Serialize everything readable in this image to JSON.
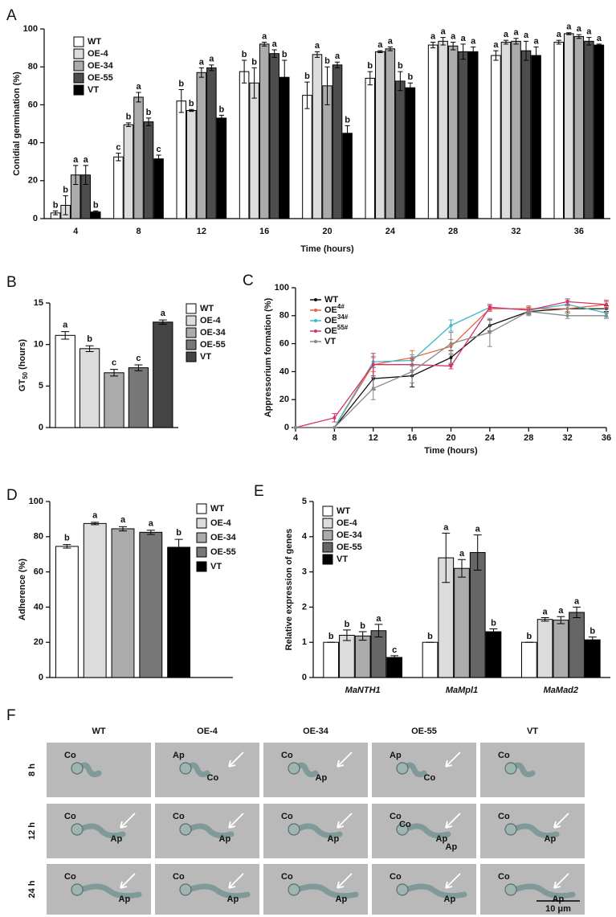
{
  "chart_data": [
    {
      "type": "bar",
      "panel_label": "A",
      "ylabel": "Conidial germination (%)",
      "xlabel": "Time (hours)",
      "categories": [
        "4",
        "8",
        "12",
        "16",
        "20",
        "24",
        "28",
        "32",
        "36"
      ],
      "ylim": [
        0,
        100
      ],
      "yticks": [
        0,
        20,
        40,
        60,
        80,
        100
      ],
      "series": [
        {
          "name": "WT",
          "color": "#ffffff",
          "values": [
            3,
            32.5,
            62,
            77.5,
            65,
            74,
            91.5,
            86,
            93
          ],
          "errors": [
            1,
            2,
            6,
            6,
            7,
            3.5,
            1.5,
            2.5,
            1
          ],
          "annotations": [
            "b",
            "c",
            "b",
            "b",
            "b",
            "b",
            "a",
            "a",
            "a"
          ]
        },
        {
          "name": "OE-4",
          "color": "#dcdcdc",
          "values": [
            7,
            49.5,
            57,
            71.5,
            86.5,
            88,
            93.5,
            93,
            97.5
          ],
          "errors": [
            5,
            1,
            0.5,
            8,
            1.5,
            0.5,
            2,
            1,
            0.5
          ],
          "annotations": [
            "b",
            "b",
            "b",
            "b",
            "a",
            "a",
            "a",
            "a",
            "a"
          ]
        },
        {
          "name": "OE-34",
          "color": "#ababab",
          "values": [
            23,
            64,
            77,
            92,
            70,
            89.5,
            91,
            93.5,
            96
          ],
          "errors": [
            5,
            2.5,
            2.5,
            1,
            10,
            1,
            2,
            1.5,
            1
          ],
          "annotations": [
            "a",
            "a",
            "a",
            "a",
            "b",
            "a",
            "a",
            "a",
            "a"
          ]
        },
        {
          "name": "OE-55",
          "color": "#4d4d4d",
          "values": [
            23,
            51,
            79.5,
            87,
            81,
            72.5,
            88,
            88.5,
            93.5
          ],
          "errors": [
            5,
            2,
            1.5,
            2,
            1.5,
            5,
            4,
            5,
            2
          ],
          "annotations": [
            "a",
            "b",
            "a",
            "a",
            "a",
            "b",
            "a",
            "a",
            "a"
          ]
        },
        {
          "name": "VT",
          "color": "#000000",
          "values": [
            3.5,
            31.5,
            53,
            74.5,
            45,
            69,
            88,
            86,
            91.5
          ],
          "errors": [
            0.5,
            2,
            1.5,
            9,
            4,
            2.5,
            2.5,
            4.5,
            0.5
          ],
          "annotations": [
            "b",
            "c",
            "b",
            "b",
            "b",
            "b",
            "a",
            "a",
            "a"
          ]
        }
      ]
    },
    {
      "type": "bar",
      "panel_label": "B",
      "ylabel": {
        "main": "GT",
        "sub": "50",
        "rest": " (hours)"
      },
      "categories": [
        "WT",
        "OE-4",
        "OE-34",
        "OE-55",
        "VT"
      ],
      "values": [
        11.1,
        9.5,
        6.6,
        7.2,
        12.7
      ],
      "errors": [
        0.45,
        0.35,
        0.4,
        0.35,
        0.25
      ],
      "annotations": [
        "a",
        "b",
        "c",
        "c",
        "a"
      ],
      "colors": [
        "#ffffff",
        "#dcdcdc",
        "#ababab",
        "#777777",
        "#444444"
      ],
      "ylim": [
        0,
        15
      ],
      "yticks": [
        0,
        5,
        10,
        15
      ]
    },
    {
      "type": "line",
      "panel_label": "C",
      "ylabel": "Appressorium formation (%)",
      "xlabel": "Time (hours)",
      "x": [
        4,
        8,
        12,
        16,
        20,
        24,
        28,
        32,
        36
      ],
      "xlim": [
        4,
        36
      ],
      "xticks": [
        4,
        8,
        12,
        16,
        20,
        24,
        28,
        32,
        36
      ],
      "ylim": [
        0,
        100
      ],
      "yticks": [
        0,
        20,
        40,
        60,
        80,
        100
      ],
      "series": [
        {
          "name": "WT",
          "color": "#111111",
          "values": [
            0,
            0,
            35,
            37,
            50,
            73,
            83,
            85,
            85
          ],
          "errors": [
            0,
            0,
            8,
            8,
            5,
            4,
            2,
            3,
            2
          ]
        },
        {
          "name": "OE",
          "sup": "4#",
          "color": "#e8643c",
          "values": [
            0,
            0,
            45,
            50,
            58,
            85,
            85,
            85,
            88
          ],
          "errors": [
            0,
            0,
            5,
            5,
            5,
            2,
            2,
            2,
            2
          ]
        },
        {
          "name": "OE",
          "sup": "34#",
          "color": "#3cb8c8",
          "values": [
            0,
            0,
            47,
            48,
            73,
            86,
            84,
            88,
            82
          ],
          "errors": [
            0,
            0,
            4,
            4,
            4,
            2,
            2,
            3,
            3
          ]
        },
        {
          "name": "OE",
          "sup": "55#",
          "color": "#d6336c",
          "values": [
            0,
            7,
            45,
            45,
            44,
            86,
            84,
            90,
            88
          ],
          "errors": [
            0,
            3,
            8,
            4,
            2,
            2,
            2,
            2,
            3
          ]
        },
        {
          "name": "VT",
          "color": "#888888",
          "values": [
            0,
            0,
            28,
            40,
            60,
            68,
            83,
            80,
            80
          ],
          "errors": [
            0,
            0,
            8,
            8,
            8,
            10,
            3,
            2,
            2
          ]
        }
      ]
    },
    {
      "type": "bar",
      "panel_label": "D",
      "ylabel": "Adherence (%)",
      "categories": [
        "WT",
        "OE-4",
        "OE-34",
        "OE-55",
        "VT"
      ],
      "values": [
        74.5,
        87.5,
        84.5,
        82.5,
        74
      ],
      "errors": [
        1,
        0.7,
        1.2,
        1.2,
        4.5
      ],
      "annotations": [
        "b",
        "a",
        "a",
        "a",
        "b"
      ],
      "colors": [
        "#ffffff",
        "#dcdcdc",
        "#ababab",
        "#777777",
        "#000000"
      ],
      "ylim": [
        0,
        100
      ],
      "yticks": [
        0,
        20,
        40,
        60,
        80,
        100
      ]
    },
    {
      "type": "bar",
      "panel_label": "E",
      "ylabel": "Relative expression of genes",
      "categories": [
        "MaNTH1",
        "MaMpl1",
        "MaMad2"
      ],
      "ylim": [
        0,
        5
      ],
      "yticks": [
        0,
        1,
        2,
        3,
        4,
        5
      ],
      "series": [
        {
          "name": "WT",
          "color": "#ffffff",
          "values": [
            1,
            1,
            1
          ],
          "errors": [
            0,
            0,
            0
          ],
          "annotations": [
            "b",
            "b",
            "b"
          ]
        },
        {
          "name": "OE-4",
          "color": "#dcdcdc",
          "values": [
            1.2,
            3.4,
            1.65
          ],
          "errors": [
            0.15,
            0.7,
            0.05
          ],
          "annotations": [
            "b",
            "a",
            "a"
          ]
        },
        {
          "name": "OE-34",
          "color": "#ababab",
          "values": [
            1.18,
            3.1,
            1.63
          ],
          "errors": [
            0.12,
            0.25,
            0.1
          ],
          "annotations": [
            "b",
            "a",
            "a"
          ]
        },
        {
          "name": "OE-55",
          "color": "#666666",
          "values": [
            1.33,
            3.55,
            1.85
          ],
          "errors": [
            0.18,
            0.5,
            0.15
          ],
          "annotations": [
            "a",
            "a",
            "a"
          ]
        },
        {
          "name": "VT",
          "color": "#000000",
          "values": [
            0.57,
            1.3,
            1.07
          ],
          "errors": [
            0.05,
            0.08,
            0.08
          ],
          "annotations": [
            "c",
            "b",
            "b"
          ]
        }
      ]
    }
  ],
  "micrographs": {
    "panel_label": "F",
    "columns": [
      "WT",
      "OE-4",
      "OE-34",
      "OE-55",
      "VT"
    ],
    "rows": [
      "8 h",
      "12 h",
      "24 h"
    ],
    "cell_labels": [
      [
        [
          "Co"
        ],
        [
          "Ap",
          "Co"
        ],
        [
          "Co",
          "Ap"
        ],
        [
          "Ap",
          "Co"
        ],
        [
          "Co"
        ]
      ],
      [
        [
          "Co",
          "Ap"
        ],
        [
          "Co",
          "Ap"
        ],
        [
          "Co",
          "Ap"
        ],
        [
          "Co",
          "Ap",
          "Co",
          "Ap"
        ],
        [
          "Co",
          "Ap"
        ]
      ],
      [
        [
          "Co",
          "Ap"
        ],
        [
          "Co",
          "Ap"
        ],
        [
          "Co",
          "Ap"
        ],
        [
          "Co",
          "Ap"
        ],
        [
          "Co",
          "Ap"
        ]
      ]
    ],
    "scale_bar": "10 μm"
  }
}
